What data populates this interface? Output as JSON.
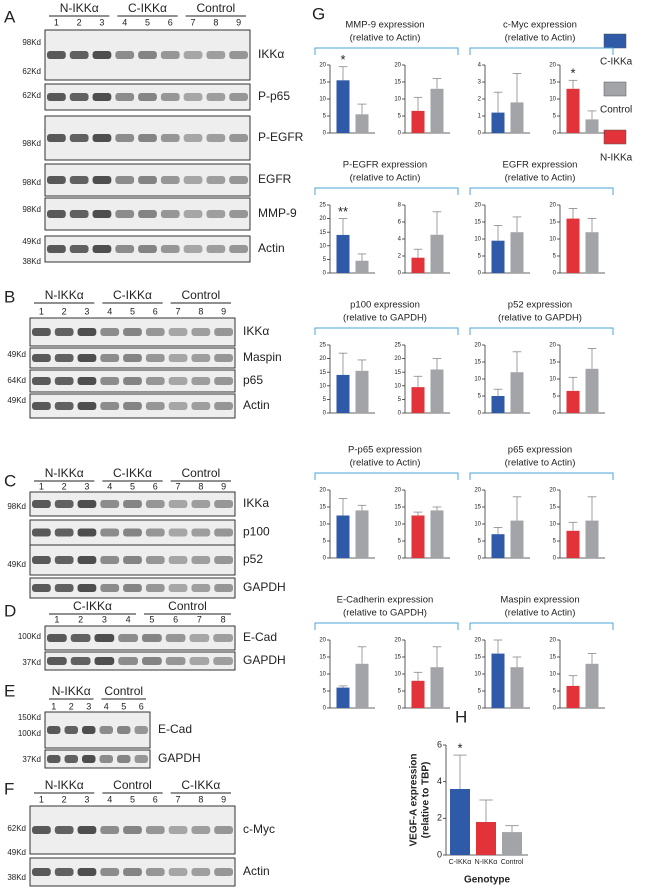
{
  "blots": [
    {
      "letter": "A",
      "groups": [
        "N-IKKα",
        "C-IKKα",
        "Control"
      ],
      "lanes": [
        1,
        2,
        3,
        4,
        5,
        6,
        7,
        8,
        9
      ],
      "rows": [
        {
          "label": "IKKα",
          "markers": [
            "98Kd",
            "62Kd"
          ]
        },
        {
          "label": "P-p65",
          "markers": [
            "62Kd"
          ]
        },
        {
          "label": "P-EGFR",
          "markers": [
            "98Kd"
          ]
        },
        {
          "label": "EGFR",
          "markers": [
            "98Kd"
          ]
        },
        {
          "label": "MMP-9",
          "markers": [
            "98Kd"
          ]
        },
        {
          "label": "Actin",
          "markers": [
            "49Kd",
            "38Kd"
          ]
        }
      ]
    },
    {
      "letter": "B",
      "groups": [
        "N-IKKα",
        "C-IKKα",
        "Control"
      ],
      "lanes": [
        1,
        2,
        3,
        4,
        5,
        6,
        7,
        8,
        9
      ],
      "rows": [
        {
          "label": "IKKα",
          "markers": []
        },
        {
          "label": "Maspin",
          "markers": [
            "49Kd"
          ]
        },
        {
          "label": "p65",
          "markers": [
            "64Kd"
          ]
        },
        {
          "label": "Actin",
          "markers": [
            "49Kd"
          ]
        }
      ]
    },
    {
      "letter": "C",
      "groups": [
        "N-IKKα",
        "C-IKKα",
        "Control"
      ],
      "lanes": [
        1,
        2,
        3,
        4,
        5,
        6,
        7,
        8,
        9
      ],
      "rows": [
        {
          "label": "IKKa",
          "markers": []
        },
        {
          "label": "p100",
          "markers": [
            "98Kd"
          ]
        },
        {
          "label": "p52",
          "markers": [
            "49Kd"
          ]
        },
        {
          "label": "GAPDH",
          "markers": []
        }
      ]
    },
    {
      "letter": "D",
      "groups": [
        "C-IKKα",
        "Control"
      ],
      "lanes": [
        1,
        2,
        3,
        4,
        5,
        6,
        7,
        8
      ],
      "rows": [
        {
          "label": "E-Cad",
          "markers": [
            "100Kd"
          ]
        },
        {
          "label": "GAPDH",
          "markers": [
            "37Kd"
          ]
        }
      ]
    },
    {
      "letter": "E",
      "groups": [
        "N-IKKα",
        "Control"
      ],
      "lanes": [
        1,
        2,
        3,
        4,
        5,
        6
      ],
      "rows": [
        {
          "label": "E-Cad",
          "markers": [
            "150Kd",
            "100Kd"
          ]
        },
        {
          "label": "GAPDH",
          "markers": [
            "37Kd"
          ]
        }
      ]
    },
    {
      "letter": "F",
      "groups": [
        "N-IKKα",
        "Control",
        "C-IKKα"
      ],
      "lanes": [
        1,
        2,
        3,
        4,
        5,
        6,
        7,
        8,
        9
      ],
      "rows": [
        {
          "label": "c-Myc",
          "markers": [
            "62Kd"
          ]
        },
        {
          "label": "Actin",
          "markers": [
            "49Kd",
            "38Kd"
          ]
        }
      ]
    }
  ],
  "chart_data": [
    {
      "type": "bar-grid",
      "panel": "G",
      "legend": [
        {
          "name": "C-IKKa",
          "color": "#2e5aa8"
        },
        {
          "name": "Control",
          "color": "#a3a4a8"
        },
        {
          "name": "N-IKKa",
          "color": "#e2333a"
        }
      ],
      "groups": [
        {
          "title": [
            "MMP-9 expression",
            "(relative to Actin)"
          ],
          "charts": [
            {
              "ylim": [
                0,
                20
              ],
              "yticks": [
                0,
                5,
                10,
                15,
                20
              ],
              "values": [
                15.5,
                5.5
              ],
              "errors": [
                4,
                3
              ],
              "colors": [
                "#2e5aa8",
                "#a3a4a8"
              ],
              "stars": [
                "*",
                null
              ]
            },
            {
              "ylim": [
                0,
                20
              ],
              "yticks": [
                0,
                5,
                10,
                15,
                20
              ],
              "values": [
                6.5,
                13
              ],
              "errors": [
                4,
                3
              ],
              "colors": [
                "#e2333a",
                "#a3a4a8"
              ],
              "stars": [
                null,
                null
              ]
            }
          ]
        },
        {
          "title": [
            "c-Myc expression",
            "(relative to Actin)"
          ],
          "charts": [
            {
              "ylim": [
                0,
                4
              ],
              "yticks": [
                0,
                1,
                2,
                3,
                4
              ],
              "values": [
                1.2,
                1.8
              ],
              "errors": [
                1.2,
                1.7
              ],
              "colors": [
                "#2e5aa8",
                "#a3a4a8"
              ],
              "stars": [
                null,
                null
              ]
            },
            {
              "ylim": [
                0,
                20
              ],
              "yticks": [
                0,
                5,
                10,
                15,
                20
              ],
              "values": [
                13,
                4
              ],
              "errors": [
                2.5,
                2.5
              ],
              "colors": [
                "#e2333a",
                "#a3a4a8"
              ],
              "stars": [
                "*",
                null
              ]
            }
          ]
        },
        {
          "title": [
            "P-EGFR expression",
            "(relative to Actin)"
          ],
          "charts": [
            {
              "ylim": [
                0,
                25
              ],
              "yticks": [
                0,
                5,
                10,
                15,
                20,
                25
              ],
              "values": [
                14,
                4.5
              ],
              "errors": [
                6,
                2.5
              ],
              "colors": [
                "#2e5aa8",
                "#a3a4a8"
              ],
              "stars": [
                "**",
                null
              ]
            },
            {
              "ylim": [
                0,
                8
              ],
              "yticks": [
                0,
                2,
                4,
                6,
                8
              ],
              "values": [
                1.8,
                4.5
              ],
              "errors": [
                1,
                2.7
              ],
              "colors": [
                "#e2333a",
                "#a3a4a8"
              ],
              "stars": [
                null,
                null
              ]
            }
          ]
        },
        {
          "title": [
            "EGFR expression",
            "(relative to Actin)"
          ],
          "charts": [
            {
              "ylim": [
                0,
                20
              ],
              "yticks": [
                0,
                5,
                10,
                15,
                20
              ],
              "values": [
                9.5,
                12
              ],
              "errors": [
                4.5,
                4.5
              ],
              "colors": [
                "#2e5aa8",
                "#a3a4a8"
              ],
              "stars": [
                null,
                null
              ]
            },
            {
              "ylim": [
                0,
                20
              ],
              "yticks": [
                0,
                5,
                10,
                15,
                20
              ],
              "values": [
                16,
                12
              ],
              "errors": [
                3,
                4
              ],
              "colors": [
                "#e2333a",
                "#a3a4a8"
              ],
              "stars": [
                null,
                null
              ]
            }
          ]
        },
        {
          "title": [
            "p100 expression",
            "(relative to GAPDH)"
          ],
          "charts": [
            {
              "ylim": [
                0,
                25
              ],
              "yticks": [
                0,
                5,
                10,
                15,
                20,
                25
              ],
              "values": [
                14,
                15.5
              ],
              "errors": [
                8,
                4
              ],
              "colors": [
                "#2e5aa8",
                "#a3a4a8"
              ],
              "stars": [
                null,
                null
              ]
            },
            {
              "ylim": [
                0,
                25
              ],
              "yticks": [
                0,
                5,
                10,
                15,
                20,
                25
              ],
              "values": [
                9.5,
                16
              ],
              "errors": [
                4,
                4
              ],
              "colors": [
                "#e2333a",
                "#a3a4a8"
              ],
              "stars": [
                null,
                null
              ]
            }
          ]
        },
        {
          "title": [
            "p52 expression",
            "(relative to GAPDH)"
          ],
          "charts": [
            {
              "ylim": [
                0,
                20
              ],
              "yticks": [
                0,
                5,
                10,
                15,
                20
              ],
              "values": [
                5,
                12
              ],
              "errors": [
                2,
                6
              ],
              "colors": [
                "#2e5aa8",
                "#a3a4a8"
              ],
              "stars": [
                null,
                null
              ]
            },
            {
              "ylim": [
                0,
                20
              ],
              "yticks": [
                0,
                5,
                10,
                15,
                20
              ],
              "values": [
                6.5,
                13
              ],
              "errors": [
                4,
                6
              ],
              "colors": [
                "#e2333a",
                "#a3a4a8"
              ],
              "stars": [
                null,
                null
              ]
            }
          ]
        },
        {
          "title": [
            "P-p65 expression",
            "(relative to Actin)"
          ],
          "charts": [
            {
              "ylim": [
                0,
                20
              ],
              "yticks": [
                0,
                5,
                10,
                15,
                20
              ],
              "values": [
                12.5,
                14
              ],
              "errors": [
                5,
                1.5
              ],
              "colors": [
                "#2e5aa8",
                "#a3a4a8"
              ],
              "stars": [
                null,
                null
              ]
            },
            {
              "ylim": [
                0,
                20
              ],
              "yticks": [
                0,
                5,
                10,
                15,
                20
              ],
              "values": [
                12.5,
                14
              ],
              "errors": [
                1,
                1
              ],
              "colors": [
                "#e2333a",
                "#a3a4a8"
              ],
              "stars": [
                null,
                null
              ]
            }
          ]
        },
        {
          "title": [
            "p65 expression",
            "(relative to Actin)"
          ],
          "charts": [
            {
              "ylim": [
                0,
                20
              ],
              "yticks": [
                0,
                5,
                10,
                15,
                20
              ],
              "values": [
                7,
                11
              ],
              "errors": [
                2,
                7
              ],
              "colors": [
                "#2e5aa8",
                "#a3a4a8"
              ],
              "stars": [
                null,
                null
              ]
            },
            {
              "ylim": [
                0,
                20
              ],
              "yticks": [
                0,
                5,
                10,
                15,
                20
              ],
              "values": [
                8,
                11
              ],
              "errors": [
                2.5,
                7
              ],
              "colors": [
                "#e2333a",
                "#a3a4a8"
              ],
              "stars": [
                null,
                null
              ]
            }
          ]
        },
        {
          "title": [
            "E-Cadherin expression",
            "(relative to GAPDH)"
          ],
          "charts": [
            {
              "ylim": [
                0,
                20
              ],
              "yticks": [
                0,
                5,
                10,
                15,
                20
              ],
              "values": [
                6,
                13
              ],
              "errors": [
                0.5,
                5
              ],
              "colors": [
                "#2e5aa8",
                "#a3a4a8"
              ],
              "stars": [
                null,
                null
              ]
            },
            {
              "ylim": [
                0,
                20
              ],
              "yticks": [
                0,
                5,
                10,
                15,
                20
              ],
              "values": [
                8,
                12
              ],
              "errors": [
                2.5,
                6
              ],
              "colors": [
                "#e2333a",
                "#a3a4a8"
              ],
              "stars": [
                null,
                null
              ]
            }
          ]
        },
        {
          "title": [
            "Maspin expression",
            "(relative to Actin)"
          ],
          "charts": [
            {
              "ylim": [
                0,
                20
              ],
              "yticks": [
                0,
                5,
                10,
                15,
                20
              ],
              "values": [
                16,
                12
              ],
              "errors": [
                4,
                3
              ],
              "colors": [
                "#2e5aa8",
                "#a3a4a8"
              ],
              "stars": [
                null,
                null
              ]
            },
            {
              "ylim": [
                0,
                20
              ],
              "yticks": [
                0,
                5,
                10,
                15,
                20
              ],
              "values": [
                6.5,
                13
              ],
              "errors": [
                3,
                3
              ],
              "colors": [
                "#e2333a",
                "#a3a4a8"
              ],
              "stars": [
                null,
                null
              ]
            }
          ]
        }
      ]
    },
    {
      "type": "bar",
      "panel": "H",
      "categories": [
        "C-IKKα",
        "N-IKKα",
        "Control"
      ],
      "values": [
        3.6,
        1.8,
        1.25
      ],
      "errors": [
        1.85,
        1.2,
        0.35
      ],
      "colors": [
        "#2e5aa8",
        "#e2333a",
        "#a3a4a8"
      ],
      "stars": [
        "*",
        null,
        null
      ],
      "ylim": [
        0,
        6
      ],
      "yticks": [
        0,
        2,
        4,
        6
      ],
      "ylabel": [
        "VEGF-A expression",
        "(relative to TBP)"
      ],
      "xlabel": "Genotype"
    }
  ]
}
